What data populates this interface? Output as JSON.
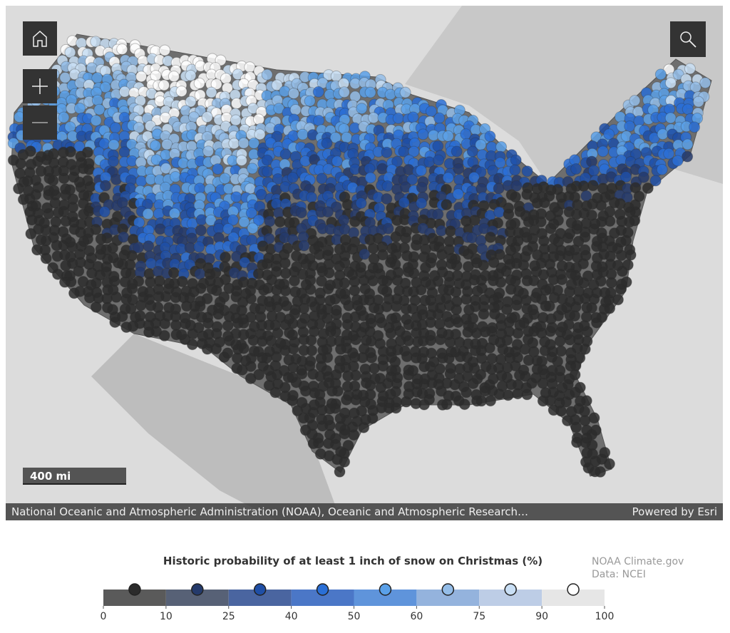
{
  "attribution": "National Oceanic and Atmospheric Administration (NOAA), Oceanic and Atmospheric Research…",
  "powered_by": "Powered by Esri",
  "scale_bar": "400 mi",
  "legend": {
    "title": "Historic probability of at least 1 inch of snow on Christmas (%)",
    "ticks": [
      0,
      10,
      25,
      40,
      50,
      60,
      75,
      90,
      100
    ],
    "bin_colors": [
      "#5a5a5a",
      "#576176",
      "#4a65a0",
      "#4b77c7",
      "#5f94db",
      "#94b3dd",
      "#bdcde6",
      "#e6e6e6"
    ],
    "marker_colors": [
      "#2b2b2b",
      "#243a6b",
      "#1f4fa6",
      "#2a6fd6",
      "#5aa0e8",
      "#94bde8",
      "#c9dff5",
      "#ffffff"
    ]
  },
  "credit": [
    "NOAA Climate.gov",
    "Data: NCEI"
  ]
}
